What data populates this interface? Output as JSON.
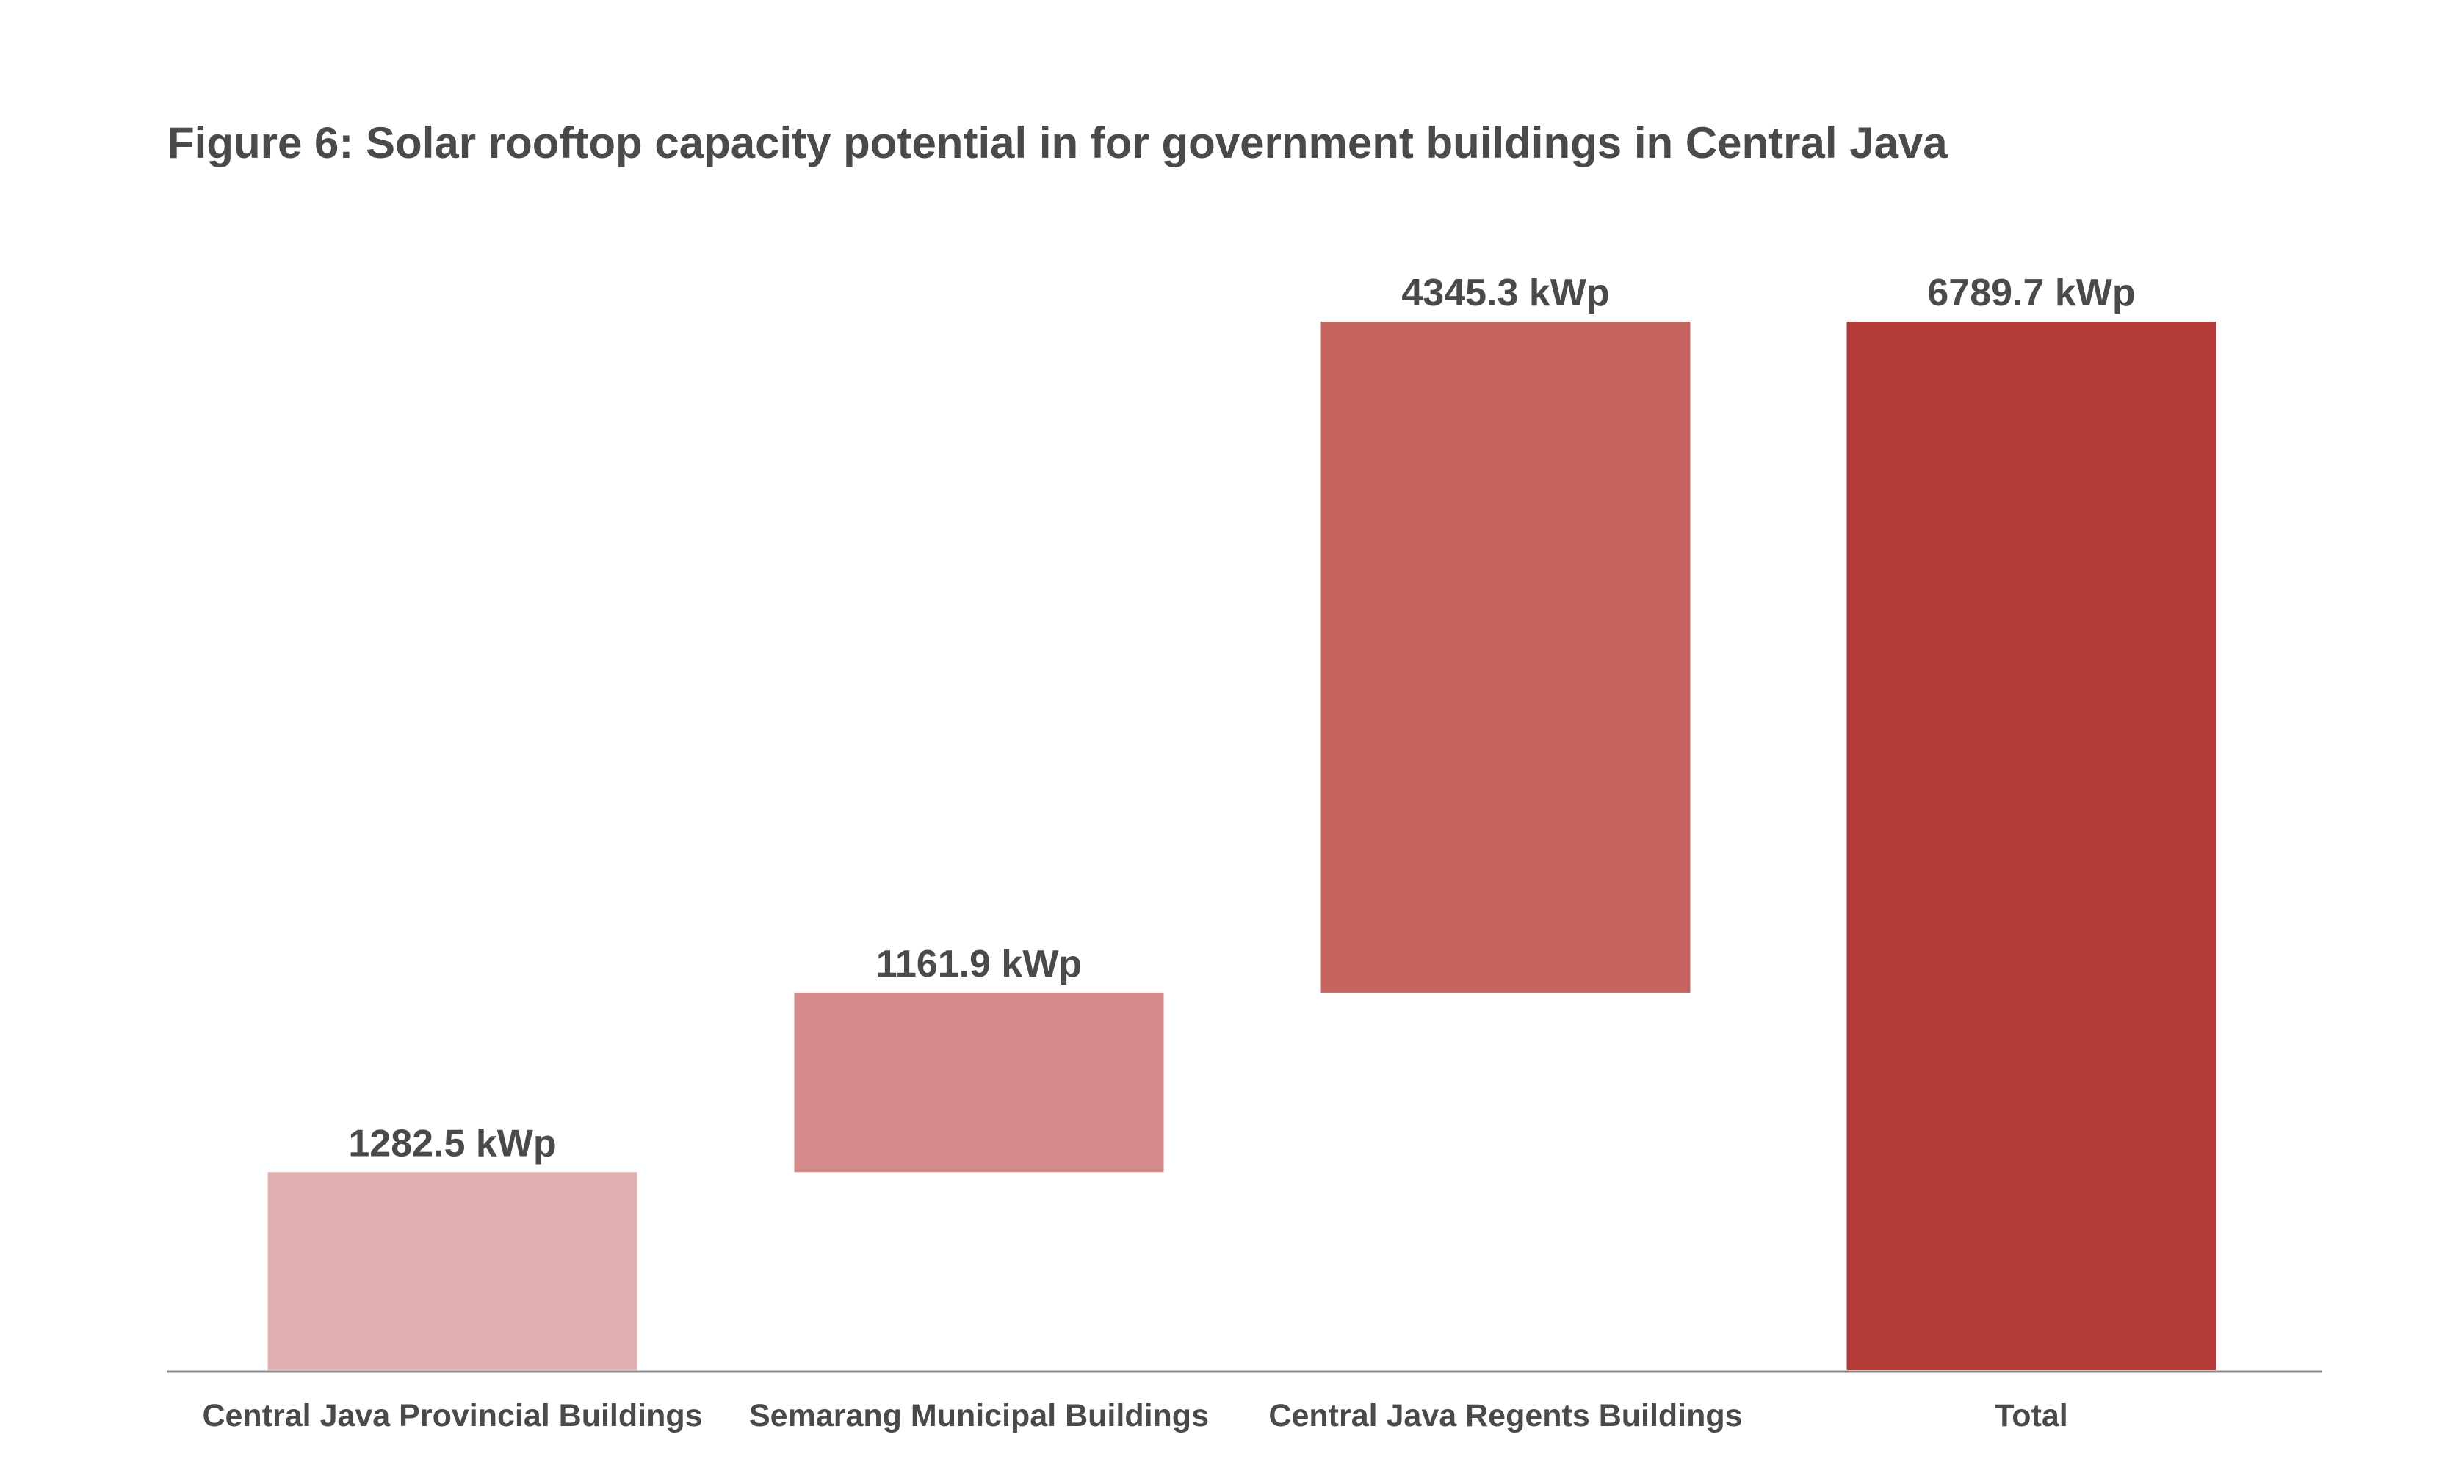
{
  "chart_data": {
    "type": "bar",
    "subtype": "waterfall",
    "title": "Figure 6: Solar rooftop capacity potential in for government buildings in Central Java",
    "xlabel": "",
    "ylabel": "",
    "unit": "kWp",
    "grid": false,
    "legend": "none",
    "categories": [
      "Central Java Provincial Buildings",
      "Semarang Municipal Buildings",
      "Central Java Regents Buildings",
      "Total"
    ],
    "values": [
      1282.5,
      1161.9,
      4345.3,
      6789.7
    ],
    "bar_start": [
      0,
      1282.5,
      2444.4,
      0
    ],
    "bar_end": [
      1282.5,
      2444.4,
      6789.7,
      6789.7
    ],
    "data_labels": [
      "1282.5 kWp",
      "1161.9 kWp",
      "4345.3 kWp",
      "6789.7 kWp"
    ],
    "colors": [
      "#e0b0b0",
      "#d48a88",
      "#c5635e",
      "#b43b38"
    ],
    "axis_color": "#888888",
    "ylim": [
      0,
      6789.7
    ]
  }
}
